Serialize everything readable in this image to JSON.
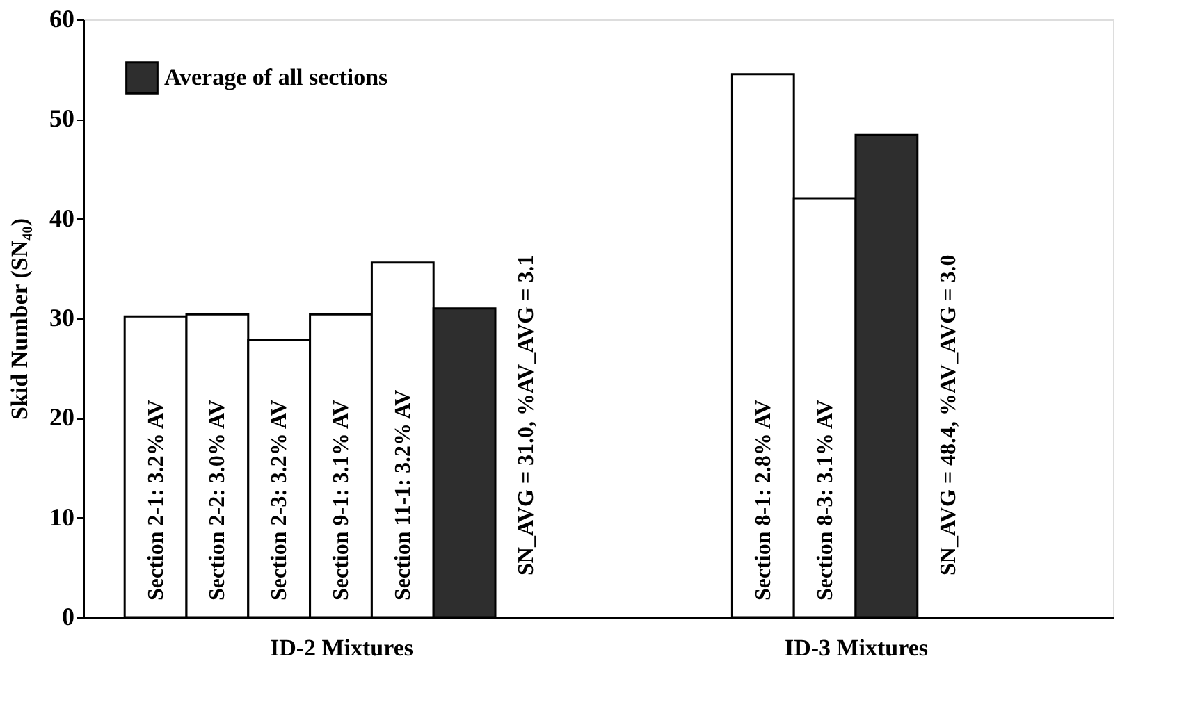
{
  "chart_data": {
    "type": "bar",
    "categories": [
      "ID-2 Mixtures",
      "ID-3 Mixtures"
    ],
    "ylabel": "Skid Number (SN₄₀)",
    "series": [
      {
        "name": "Section 2-1:  3.2% AV",
        "color": "#ffffff",
        "values": [
          30.2,
          null
        ]
      },
      {
        "name": "Section 2-2:  3.0% AV",
        "color": "#ffffff",
        "values": [
          30.4,
          null
        ]
      },
      {
        "name": "Section 2-3:  3.2% AV",
        "color": "#ffffff",
        "values": [
          27.8,
          null
        ]
      },
      {
        "name": "Section 9-1:  3.1% AV",
        "color": "#ffffff",
        "values": [
          30.4,
          null
        ]
      },
      {
        "name": "Section 11-1:  3.2% AV",
        "color": "#ffffff",
        "values": [
          35.6,
          null
        ]
      },
      {
        "name": "Section 8-1:  2.8% AV",
        "color": "#ffffff",
        "values": [
          null,
          54.5
        ]
      },
      {
        "name": "Section 8-3:  3.1% AV",
        "color": "#ffffff",
        "values": [
          null,
          42.0
        ]
      },
      {
        "name": "Average of all sections",
        "color": "#2e2e2e",
        "values": [
          31.0,
          48.4
        ]
      }
    ],
    "annotations": [
      "SN_AVG = 31.0, %AV_AVG = 3.1",
      "SN_AVG = 48.4, %AV_AVG = 3.0"
    ],
    "ylim": [
      0,
      60
    ],
    "yticks": [
      0,
      10,
      20,
      30,
      40,
      50,
      60
    ],
    "grid": false,
    "legend": "top left"
  }
}
